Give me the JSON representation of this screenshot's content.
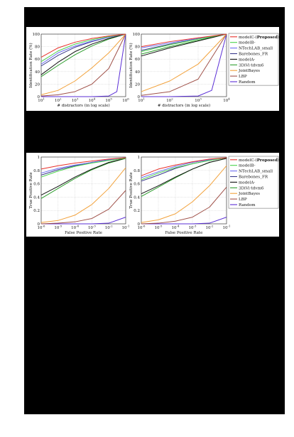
{
  "figure": {
    "background": "#000000",
    "panel_background": "#ffffff",
    "grid_color": "#bfbfbf"
  },
  "series_styles": [
    {
      "name": "modelC-(Proposed)",
      "color": "#e8302a"
    },
    {
      "name": "modelB-",
      "color": "#49d14a"
    },
    {
      "name": "NTechLAB_small",
      "color": "#6d6df0"
    },
    {
      "name": "Barebones_FR",
      "color": "#3a3a8c"
    },
    {
      "name": "modelA-",
      "color": "#111111"
    },
    {
      "name": "3DiVi-tdvm6",
      "color": "#2e9e2e"
    },
    {
      "name": "JointBayes",
      "color": "#f2a23c"
    },
    {
      "name": "LBP",
      "color": "#a0524a"
    },
    {
      "name": "Random",
      "color": "#5b2fd6"
    }
  ],
  "chart_data": [
    {
      "type": "line",
      "xlabel": "# distractors (in log scale)",
      "ylabel": "Identification Rate (%)",
      "x_scale": "log",
      "x_ticks": [
        "10^1",
        "10^2",
        "10^3",
        "10^4",
        "10^5",
        "10^6"
      ],
      "y_ticks": [
        "0",
        "20",
        "40",
        "60",
        "80",
        "100"
      ],
      "ylim": [
        0,
        100
      ],
      "grid": true,
      "legend": "none",
      "series": [
        {
          "name": "modelC-(Proposed)",
          "x": [
            10,
            100,
            1000,
            10000,
            100000,
            1000000
          ],
          "y": [
            63,
            78,
            87,
            93,
            97,
            100
          ]
        },
        {
          "name": "modelB-",
          "x": [
            10,
            100,
            1000,
            10000,
            100000,
            1000000
          ],
          "y": [
            56,
            73,
            84,
            91,
            96,
            100
          ]
        },
        {
          "name": "NTechLAB_small",
          "x": [
            10,
            100,
            1000,
            10000,
            100000,
            1000000
          ],
          "y": [
            52,
            70,
            81,
            89,
            95,
            100
          ]
        },
        {
          "name": "Barebones_FR",
          "x": [
            10,
            100,
            1000,
            10000,
            100000,
            1000000
          ],
          "y": [
            49,
            66,
            79,
            88,
            95,
            100
          ]
        },
        {
          "name": "modelA-",
          "x": [
            10,
            100,
            1000,
            10000,
            100000,
            1000000
          ],
          "y": [
            35,
            55,
            72,
            84,
            93,
            100
          ]
        },
        {
          "name": "3DiVi-tdvm6",
          "x": [
            10,
            100,
            1000,
            10000,
            100000,
            1000000
          ],
          "y": [
            32,
            50,
            67,
            81,
            92,
            100
          ]
        },
        {
          "name": "JointBayes",
          "x": [
            10,
            100,
            1000,
            10000,
            100000,
            1000000
          ],
          "y": [
            3,
            10,
            25,
            46,
            70,
            100
          ]
        },
        {
          "name": "LBP",
          "x": [
            10,
            100,
            1000,
            10000,
            100000,
            1000000
          ],
          "y": [
            1,
            3,
            8,
            20,
            45,
            100
          ]
        },
        {
          "name": "Random",
          "x": [
            10,
            100,
            1000,
            10000,
            100000,
            300000,
            1000000
          ],
          "y": [
            0,
            0,
            0,
            0,
            1,
            8,
            100
          ]
        }
      ]
    },
    {
      "type": "line",
      "xlabel": "# distractors (in log scale)",
      "ylabel": "Identification Rate (%)",
      "x_scale": "log",
      "x_ticks": [
        "10^1",
        "10^2",
        "10^3",
        "10^4"
      ],
      "y_ticks": [
        "0",
        "20",
        "40",
        "60",
        "80",
        "100"
      ],
      "ylim": [
        0,
        100
      ],
      "grid": true,
      "legend": "right",
      "series": [
        {
          "name": "modelC-(Proposed)",
          "x": [
            10,
            100,
            1000,
            10000
          ],
          "y": [
            80,
            88,
            94,
            100
          ]
        },
        {
          "name": "modelB-",
          "x": [
            10,
            100,
            1000,
            10000
          ],
          "y": [
            72,
            83,
            92,
            100
          ]
        },
        {
          "name": "NTechLAB_small",
          "x": [
            10,
            100,
            1000,
            10000
          ],
          "y": [
            78,
            86,
            93,
            100
          ]
        },
        {
          "name": "Barebones_FR",
          "x": [
            10,
            100,
            1000,
            10000
          ],
          "y": [
            74,
            84,
            92,
            100
          ]
        },
        {
          "name": "modelA-",
          "x": [
            10,
            100,
            1000,
            10000
          ],
          "y": [
            65,
            78,
            89,
            100
          ]
        },
        {
          "name": "3DiVi-tdvm6",
          "x": [
            10,
            100,
            1000,
            10000
          ],
          "y": [
            68,
            80,
            90,
            100
          ]
        },
        {
          "name": "JointBayes",
          "x": [
            10,
            100,
            1000,
            10000
          ],
          "y": [
            8,
            25,
            52,
            100
          ]
        },
        {
          "name": "LBP",
          "x": [
            10,
            100,
            1000,
            10000
          ],
          "y": [
            2,
            8,
            28,
            100
          ]
        },
        {
          "name": "Random",
          "x": [
            10,
            100,
            1000,
            3000,
            10000
          ],
          "y": [
            0,
            0,
            1,
            10,
            100
          ]
        }
      ]
    },
    {
      "type": "line",
      "xlabel": "False Positive Rate",
      "ylabel": "True Positive Rate",
      "x_scale": "log",
      "x_ticks": [
        "10^-6",
        "10^-5",
        "10^-4",
        "10^-3",
        "10^-2",
        "10^-1"
      ],
      "y_ticks": [
        "0",
        "0.2",
        "0.4",
        "0.6",
        "0.8",
        "1"
      ],
      "ylim": [
        0,
        1
      ],
      "grid": true,
      "legend": "none",
      "series": [
        {
          "name": "modelC-(Proposed)",
          "x": [
            1e-06,
            1e-05,
            0.0001,
            0.001,
            0.01,
            0.1
          ],
          "y": [
            0.82,
            0.87,
            0.91,
            0.94,
            0.97,
            0.99
          ]
        },
        {
          "name": "modelB-",
          "x": [
            1e-06,
            1e-05,
            0.0001,
            0.001,
            0.01,
            0.1
          ],
          "y": [
            0.7,
            0.79,
            0.86,
            0.91,
            0.95,
            0.98
          ]
        },
        {
          "name": "NTechLAB_small",
          "x": [
            1e-06,
            1e-05,
            0.0001,
            0.001,
            0.01,
            0.1
          ],
          "y": [
            0.76,
            0.83,
            0.88,
            0.92,
            0.96,
            0.99
          ]
        },
        {
          "name": "Barebones_FR",
          "x": [
            1e-06,
            1e-05,
            0.0001,
            0.001,
            0.01,
            0.1
          ],
          "y": [
            0.73,
            0.81,
            0.87,
            0.92,
            0.96,
            0.99
          ]
        },
        {
          "name": "modelA-",
          "x": [
            1e-06,
            1e-05,
            0.0001,
            0.001,
            0.01,
            0.1
          ],
          "y": [
            0.43,
            0.56,
            0.7,
            0.82,
            0.92,
            0.98
          ]
        },
        {
          "name": "3DiVi-tdvm6",
          "x": [
            1e-06,
            1e-05,
            0.0001,
            0.001,
            0.01,
            0.1
          ],
          "y": [
            0.38,
            0.53,
            0.68,
            0.81,
            0.91,
            0.98
          ]
        },
        {
          "name": "JointBayes",
          "x": [
            1e-06,
            1e-05,
            0.0001,
            0.001,
            0.01,
            0.1
          ],
          "y": [
            0.02,
            0.05,
            0.13,
            0.29,
            0.53,
            0.84
          ]
        },
        {
          "name": "LBP",
          "x": [
            1e-06,
            1e-05,
            0.0001,
            0.001,
            0.01,
            0.1
          ],
          "y": [
            0,
            0.01,
            0.03,
            0.08,
            0.22,
            0.5
          ]
        },
        {
          "name": "Random",
          "x": [
            1e-06,
            1e-05,
            0.0001,
            0.001,
            0.01,
            0.1
          ],
          "y": [
            0,
            0,
            0,
            0,
            0.01,
            0.1
          ]
        }
      ]
    },
    {
      "type": "line",
      "xlabel": "False Positive Rate",
      "ylabel": "True Positive Rate",
      "x_scale": "log",
      "x_ticks": [
        "10^-6",
        "10^-5",
        "10^-4",
        "10^-3",
        "10^-2",
        "10^-1"
      ],
      "y_ticks": [
        "0",
        "0.2",
        "0.4",
        "0.6",
        "0.8",
        "1"
      ],
      "ylim": [
        0,
        1
      ],
      "grid": true,
      "legend": "right",
      "series": [
        {
          "name": "modelC-(Proposed)",
          "x": [
            1e-06,
            1e-05,
            0.0001,
            0.001,
            0.01,
            0.1
          ],
          "y": [
            0.72,
            0.82,
            0.88,
            0.93,
            0.97,
            0.99
          ]
        },
        {
          "name": "modelB-",
          "x": [
            1e-06,
            1e-05,
            0.0001,
            0.001,
            0.01,
            0.1
          ],
          "y": [
            0.66,
            0.76,
            0.84,
            0.9,
            0.95,
            0.99
          ]
        },
        {
          "name": "NTechLAB_small",
          "x": [
            1e-06,
            1e-05,
            0.0001,
            0.001,
            0.01,
            0.1
          ],
          "y": [
            0.69,
            0.78,
            0.86,
            0.92,
            0.96,
            0.99
          ]
        },
        {
          "name": "Barebones_FR",
          "x": [
            1e-06,
            1e-05,
            0.0001,
            0.001,
            0.01,
            0.1
          ],
          "y": [
            0.64,
            0.73,
            0.83,
            0.9,
            0.95,
            0.99
          ]
        },
        {
          "name": "modelA-",
          "x": [
            1e-06,
            1e-05,
            0.0001,
            0.001,
            0.01,
            0.1
          ],
          "y": [
            0.45,
            0.57,
            0.7,
            0.82,
            0.92,
            0.98
          ]
        },
        {
          "name": "3DiVi-tdvm6",
          "x": [
            1e-06,
            1e-05,
            0.0001,
            0.001,
            0.01,
            0.1
          ],
          "y": [
            0.41,
            0.55,
            0.69,
            0.82,
            0.92,
            0.98
          ]
        },
        {
          "name": "JointBayes",
          "x": [
            1e-06,
            1e-05,
            0.0001,
            0.001,
            0.01,
            0.1
          ],
          "y": [
            0.02,
            0.06,
            0.15,
            0.33,
            0.57,
            0.87
          ]
        },
        {
          "name": "LBP",
          "x": [
            1e-06,
            1e-05,
            0.0001,
            0.001,
            0.01,
            0.1
          ],
          "y": [
            0,
            0.01,
            0.04,
            0.1,
            0.25,
            0.55
          ]
        },
        {
          "name": "Random",
          "x": [
            1e-06,
            1e-05,
            0.0001,
            0.001,
            0.01,
            0.1
          ],
          "y": [
            0,
            0,
            0,
            0,
            0.01,
            0.1
          ]
        }
      ]
    }
  ]
}
